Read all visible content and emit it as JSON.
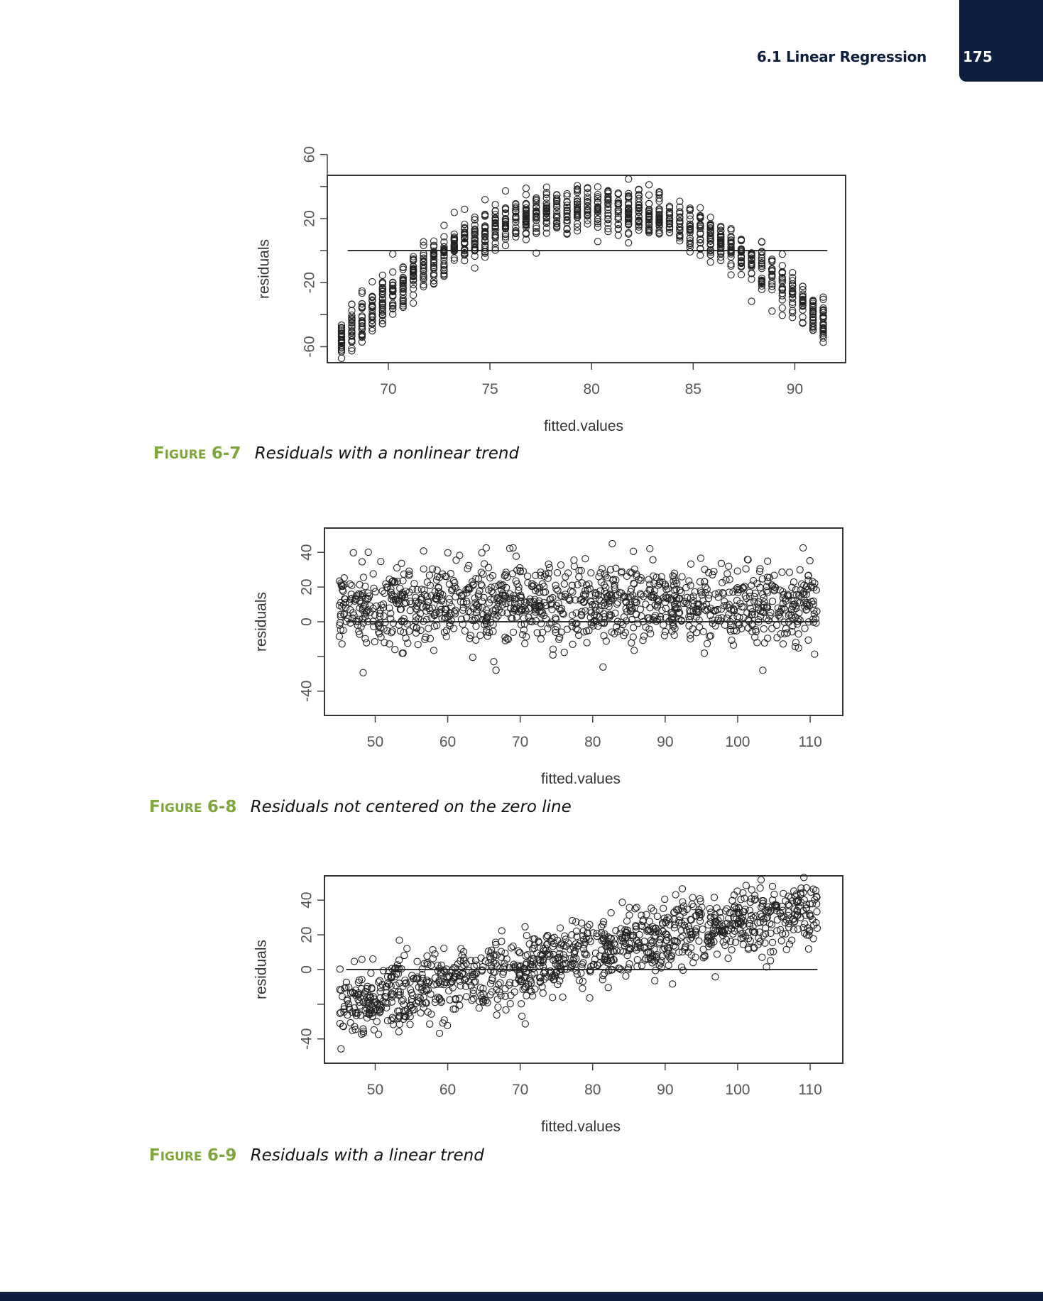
{
  "header": {
    "running_head": "6.1 Linear Regression",
    "page_number": "175"
  },
  "figures": [
    {
      "caption_prefix_first": "F",
      "caption_prefix_rest": "IGURE",
      "caption_number": "6-7",
      "caption_text": "Residuals with a nonlinear trend"
    },
    {
      "caption_prefix_first": "F",
      "caption_prefix_rest": "IGURE",
      "caption_number": "6-8",
      "caption_text": "Residuals not centered on the zero line"
    },
    {
      "caption_prefix_first": "F",
      "caption_prefix_rest": "IGURE",
      "caption_number": "6-9",
      "caption_text": "Residuals with a linear trend"
    }
  ],
  "chart_data": [
    {
      "type": "scatter",
      "title": "",
      "xlabel": "fitted.values",
      "ylabel": "residuals",
      "xlim": [
        67,
        92.5
      ],
      "ylim": [
        -70,
        47
      ],
      "xticks": [
        70,
        75,
        80,
        85,
        90
      ],
      "yticks": [
        -60,
        -40,
        -20,
        0,
        20,
        40,
        60
      ],
      "ytick_labels": [
        "-60",
        "",
        "-20",
        "",
        "20",
        "",
        "60"
      ],
      "grid": false,
      "reference_line": {
        "y": 0,
        "x_from": 68,
        "x_to": 91.6
      },
      "trend": {
        "kind": "quadratic",
        "peak_x": 80,
        "peak_y": 26,
        "end_y": -55,
        "x_range": [
          67.7,
          91.4
        ],
        "spread": 10
      },
      "n_points": 1200,
      "marker": "open-circle"
    },
    {
      "type": "scatter",
      "title": "",
      "xlabel": "fitted.values",
      "ylabel": "residuals",
      "xlim": [
        43,
        114.5
      ],
      "ylim": [
        -54,
        54
      ],
      "xticks": [
        50,
        60,
        70,
        80,
        90,
        100,
        110
      ],
      "yticks": [
        -40,
        -20,
        0,
        20,
        40
      ],
      "ytick_labels": [
        "-40",
        "",
        "0",
        "20",
        "40"
      ],
      "grid": false,
      "reference_line": {
        "y": 0,
        "x_from": 46,
        "x_to": 111
      },
      "trend": {
        "kind": "constant",
        "offset": 10,
        "x_range": [
          45,
          111
        ],
        "spread": 12
      },
      "n_points": 1200,
      "marker": "open-circle"
    },
    {
      "type": "scatter",
      "title": "",
      "xlabel": "fitted.values",
      "ylabel": "residuals",
      "xlim": [
        43,
        114.5
      ],
      "ylim": [
        -54,
        54
      ],
      "xticks": [
        50,
        60,
        70,
        80,
        90,
        100,
        110
      ],
      "yticks": [
        -40,
        -20,
        0,
        20,
        40
      ],
      "ytick_labels": [
        "-40",
        "",
        "0",
        "20",
        "40"
      ],
      "grid": false,
      "reference_line": {
        "y": 0,
        "x_from": 46,
        "x_to": 111
      },
      "trend": {
        "kind": "linear",
        "y_at_x_start": -20,
        "y_at_x_end": 36,
        "x_range": [
          45,
          111
        ],
        "spread": 10
      },
      "n_points": 1200,
      "marker": "open-circle"
    }
  ]
}
